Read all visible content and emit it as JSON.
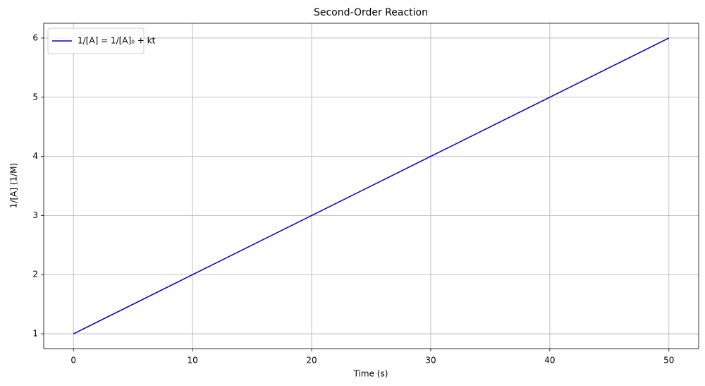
{
  "chart_data": {
    "type": "line",
    "title": "Second-Order Reaction",
    "x_label": "Time (s)",
    "y_label": "1/[A] (1/M)",
    "x": [
      0,
      10,
      20,
      30,
      40,
      50
    ],
    "series": [
      {
        "name": "1/[A] = 1/[A]₀ + kt",
        "color": "mediumblue",
        "values": [
          1,
          2,
          3,
          4,
          5,
          6
        ]
      }
    ],
    "xlim": [
      -2.5,
      52.5
    ],
    "xticks": [
      0,
      10,
      20,
      30,
      40,
      50
    ],
    "ylim": [
      0.75,
      6.25
    ],
    "yticks": [
      1,
      2,
      3,
      4,
      5,
      6
    ],
    "grid": true,
    "legend": "upper left"
  }
}
